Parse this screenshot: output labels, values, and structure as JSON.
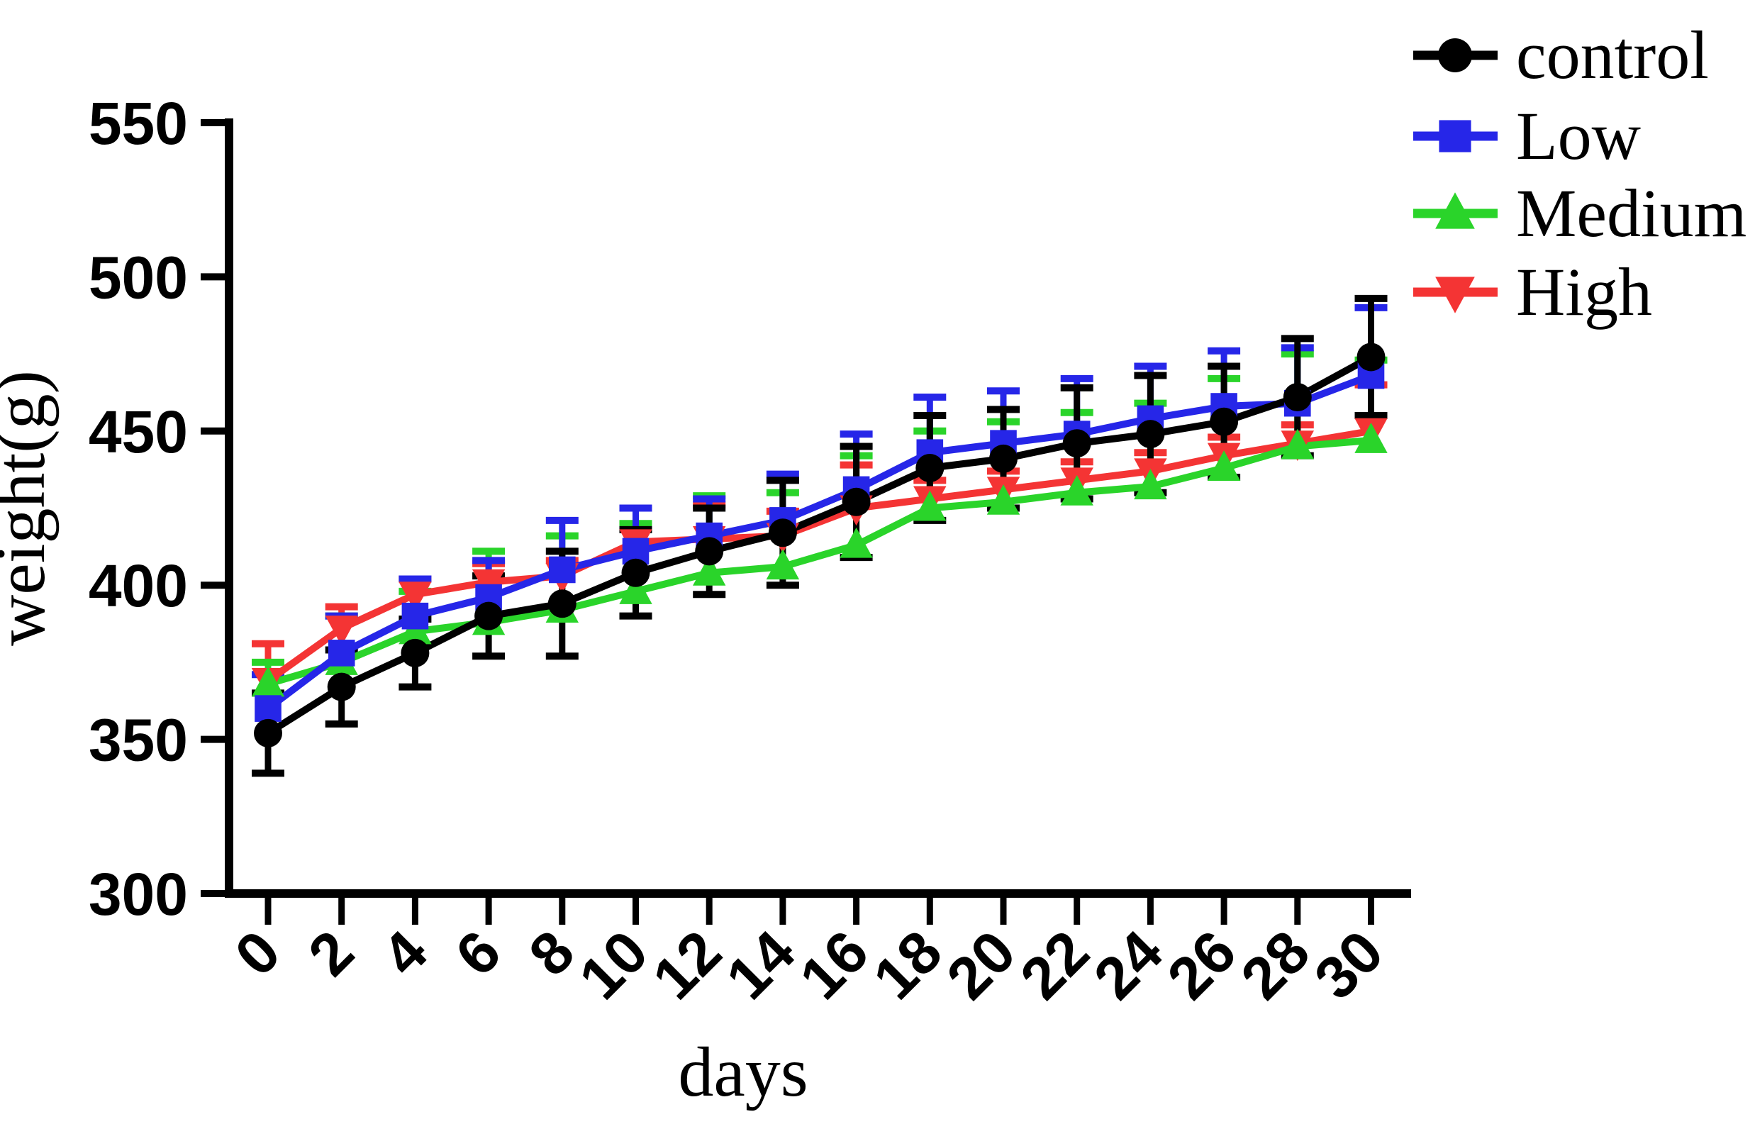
{
  "figure": {
    "background": "#ffffff",
    "description": "Line chart with error bars of body weight over days for four groups"
  },
  "chart_data": {
    "type": "line",
    "title": "",
    "xlabel": "days",
    "ylabel": "weight(g)",
    "xlim": [
      0,
      30
    ],
    "ylim": [
      300,
      550
    ],
    "xticks": [
      0,
      2,
      4,
      6,
      8,
      10,
      12,
      14,
      16,
      18,
      20,
      22,
      24,
      26,
      28,
      30
    ],
    "yticks": [
      300,
      350,
      400,
      450,
      500,
      550
    ],
    "grid": false,
    "legend_position": "top-right",
    "x": [
      0,
      2,
      4,
      6,
      8,
      10,
      12,
      14,
      16,
      18,
      20,
      22,
      24,
      26,
      28,
      30
    ],
    "series": [
      {
        "name": "control",
        "color": "#000000",
        "marker": "circle",
        "error_bars": "both",
        "values": [
          352,
          367,
          378,
          390,
          394,
          404,
          411,
          417,
          427,
          438,
          441,
          446,
          449,
          453,
          461,
          474
        ],
        "err": [
          13,
          12,
          11,
          13,
          17,
          14,
          14,
          17,
          18,
          17,
          16,
          18,
          19,
          18,
          19,
          19
        ]
      },
      {
        "name": "Low",
        "color": "#2626e8",
        "marker": "square",
        "error_bars": "upper",
        "values": [
          360,
          378,
          390,
          396,
          405,
          411,
          416,
          421,
          431,
          443,
          446,
          449,
          454,
          458,
          459,
          468
        ],
        "err": [
          11,
          12,
          12,
          12,
          16,
          14,
          12,
          15,
          18,
          18,
          17,
          18,
          17,
          18,
          18,
          22
        ]
      },
      {
        "name": "Medium",
        "color": "#2ad42a",
        "marker": "triangle-up",
        "error_bars": "upper",
        "values": [
          368,
          375,
          385,
          388,
          392,
          398,
          404,
          406,
          413,
          425,
          427,
          430,
          432,
          438,
          445,
          447
        ],
        "err": [
          7,
          15,
          13,
          23,
          24,
          22,
          25,
          24,
          29,
          25,
          26,
          26,
          27,
          29,
          30,
          26
        ]
      },
      {
        "name": "High",
        "color": "#f43434",
        "marker": "triangle-down",
        "error_bars": "upper",
        "values": [
          369,
          386,
          397,
          401,
          403,
          414,
          415,
          416,
          425,
          428,
          431,
          434,
          437,
          442,
          446,
          450
        ],
        "err": [
          12,
          7,
          5,
          6,
          5,
          11,
          11,
          8,
          14,
          6,
          6,
          6,
          6,
          6,
          6,
          15
        ]
      }
    ],
    "draw_order": [
      "High",
      "Medium",
      "Low",
      "control"
    ],
    "legend_order": [
      "control",
      "Low",
      "Medium",
      "High"
    ]
  }
}
